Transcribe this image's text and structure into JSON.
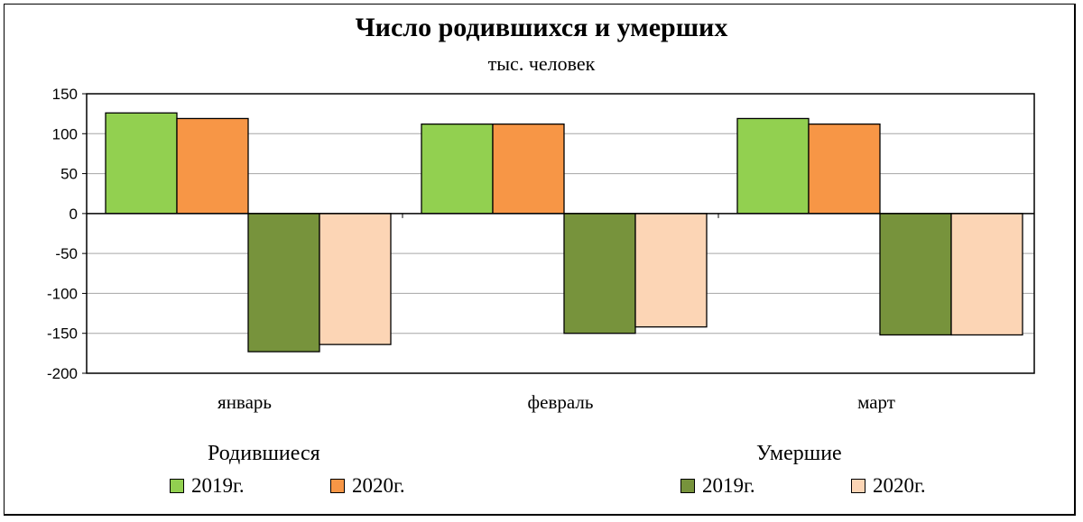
{
  "chart_data": {
    "type": "bar",
    "title": "Число родившихся и умерших",
    "subtitle": "тыс. человек",
    "categories": [
      "январь",
      "февраль",
      "март"
    ],
    "ylim": [
      -200,
      150
    ],
    "yticks": [
      150,
      100,
      50,
      0,
      -50,
      -100,
      -150,
      -200
    ],
    "grid": true,
    "legend_groups": [
      {
        "label": "Родившиеся",
        "items": [
          0,
          1
        ]
      },
      {
        "label": "Умершие",
        "items": [
          2,
          3
        ]
      }
    ],
    "series": [
      {
        "name": "2019г.",
        "group": "Родившиеся",
        "color": "#92d050",
        "values": [
          126,
          112,
          119
        ]
      },
      {
        "name": "2020г.",
        "group": "Родившиеся",
        "color": "#f79646",
        "values": [
          119,
          112,
          112
        ]
      },
      {
        "name": "2019г.",
        "group": "Умершие",
        "color": "#77933c",
        "values": [
          -173,
          -150,
          -152
        ]
      },
      {
        "name": "2020г.",
        "group": "Умершие",
        "color": "#fcd5b5",
        "values": [
          -164,
          -142,
          -152
        ]
      }
    ]
  }
}
